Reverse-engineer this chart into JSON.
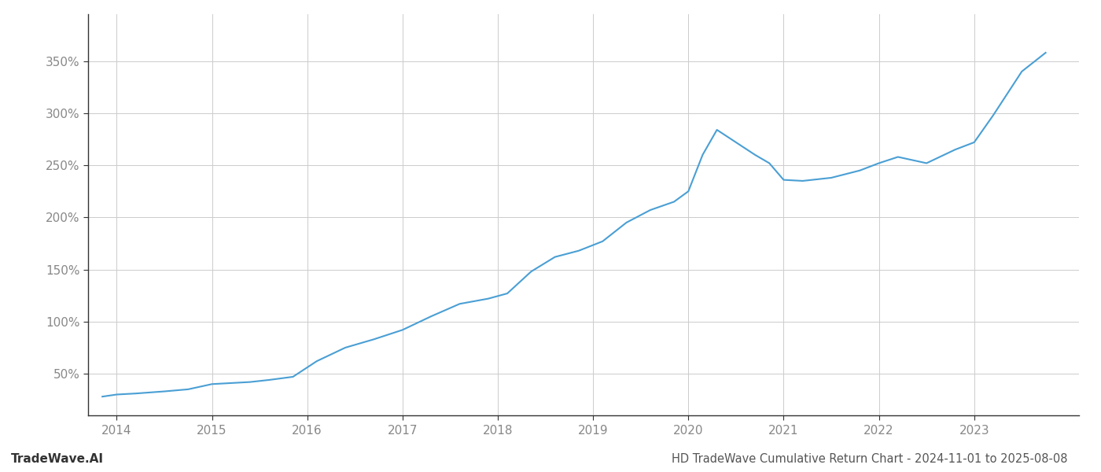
{
  "x_values": [
    2013.85,
    2014.0,
    2014.2,
    2014.5,
    2014.75,
    2015.0,
    2015.2,
    2015.4,
    2015.6,
    2015.85,
    2016.1,
    2016.4,
    2016.7,
    2017.0,
    2017.3,
    2017.6,
    2017.9,
    2018.1,
    2018.35,
    2018.6,
    2018.85,
    2019.1,
    2019.35,
    2019.6,
    2019.85,
    2020.0,
    2020.15,
    2020.3,
    2020.5,
    2020.7,
    2020.85,
    2021.0,
    2021.2,
    2021.5,
    2021.8,
    2022.0,
    2022.2,
    2022.5,
    2022.8,
    2023.0,
    2023.2,
    2023.5,
    2023.75
  ],
  "y_values": [
    28,
    30,
    31,
    33,
    35,
    40,
    41,
    42,
    44,
    47,
    62,
    75,
    83,
    92,
    105,
    117,
    122,
    127,
    148,
    162,
    168,
    177,
    195,
    207,
    215,
    225,
    260,
    284,
    272,
    260,
    252,
    236,
    235,
    238,
    245,
    252,
    258,
    252,
    265,
    272,
    298,
    340,
    358
  ],
  "line_color": "#4a9fd4",
  "line_width": 1.5,
  "background_color": "#ffffff",
  "grid_color": "#cccccc",
  "title_text": "HD TradeWave Cumulative Return Chart - 2024-11-01 to 2025-08-08",
  "watermark_text": "TradeWave.AI",
  "title_fontsize": 10.5,
  "watermark_fontsize": 11,
  "ytick_labels": [
    "50%",
    "100%",
    "150%",
    "200%",
    "250%",
    "300%",
    "350%"
  ],
  "ytick_values": [
    50,
    100,
    150,
    200,
    250,
    300,
    350
  ],
  "xtick_labels": [
    "2014",
    "2015",
    "2016",
    "2017",
    "2018",
    "2019",
    "2020",
    "2021",
    "2022",
    "2023"
  ],
  "xtick_values": [
    2014,
    2015,
    2016,
    2017,
    2018,
    2019,
    2020,
    2021,
    2022,
    2023
  ],
  "xlim": [
    2013.7,
    2024.1
  ],
  "ylim": [
    10,
    395
  ]
}
